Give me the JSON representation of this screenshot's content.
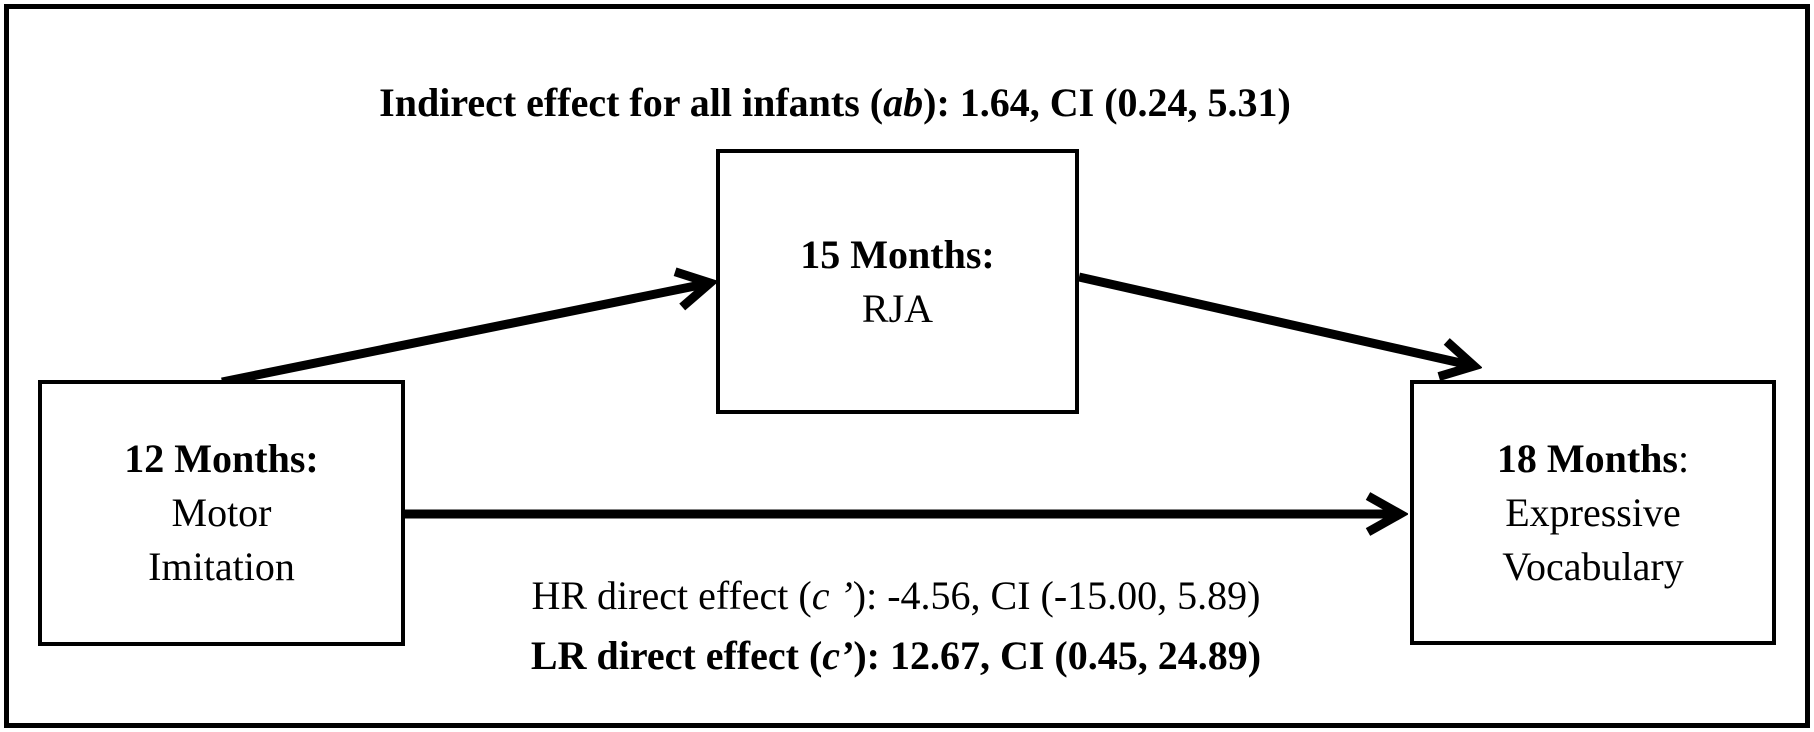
{
  "figure": {
    "background_color": "#ffffff",
    "line_color": "#000000",
    "indirect_effect_label": [
      {
        "t": "Indirect effect for all infants (",
        "b": true
      },
      {
        "t": "ab",
        "b": true,
        "i": true
      },
      {
        "t": "): 1.64, CI (0.24, 5.31)",
        "b": true
      }
    ],
    "boxes": [
      {
        "id": "predictor",
        "lines": [
          [
            {
              "t": "12 Months:",
              "b": true
            }
          ],
          [
            {
              "t": "Motor"
            }
          ],
          [
            {
              "t": "Imitation"
            }
          ]
        ]
      },
      {
        "id": "mediator",
        "lines": [
          [
            {
              "t": "15 Months:",
              "b": true
            }
          ],
          [
            {
              "t": "RJA"
            }
          ]
        ]
      },
      {
        "id": "outcome",
        "lines": [
          [
            {
              "t": "18 Months",
              "b": true
            },
            {
              "t": ":"
            }
          ],
          [
            {
              "t": "Expressive"
            }
          ],
          [
            {
              "t": "Vocabulary"
            }
          ]
        ]
      }
    ],
    "direct_effect_labels": [
      [
        {
          "t": "HR direct effect ("
        },
        {
          "t": "c ’",
          "i": true
        },
        {
          "t": "): -4.56, CI (-15.00, 5.89)"
        }
      ],
      [
        {
          "t": "LR direct effect (",
          "b": true
        },
        {
          "t": "c’",
          "b": true,
          "i": true
        },
        {
          "t": "): 12.67, CI (0.45, 24.89)",
          "b": true
        }
      ]
    ]
  }
}
